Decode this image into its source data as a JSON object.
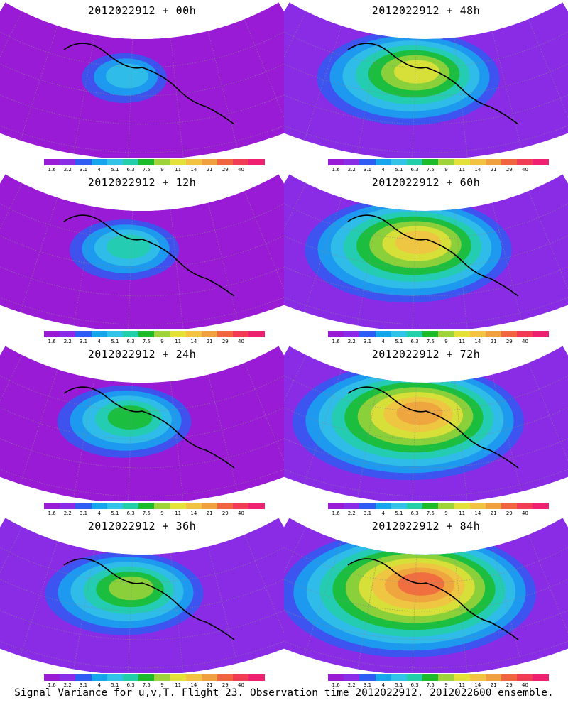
{
  "figure": {
    "caption": "Signal Variance for u,v,T. Flight 23. Observation time 2012022912. 2012022600 ensemble."
  },
  "colorbar": {
    "labels": [
      "1.6",
      "2.2",
      "3.1",
      "4",
      "5.1",
      "6.3",
      "7.5",
      "9",
      "11",
      "14",
      "21",
      "29",
      "40"
    ],
    "colors": [
      "#9a1bd6",
      "#8a2ce6",
      "#2f5cf2",
      "#17a6ee",
      "#33c2e8",
      "#22cfa8",
      "#1bbb2a",
      "#9ed43a",
      "#e4e23a",
      "#f2c243",
      "#f0a03f",
      "#f0643f",
      "#f03c55",
      "#f02070"
    ]
  },
  "panels": [
    {
      "title": "2012022912 + 00h",
      "lead_hours": 0
    },
    {
      "title": "2012022912 + 48h",
      "lead_hours": 48
    },
    {
      "title": "2012022912 + 12h",
      "lead_hours": 12
    },
    {
      "title": "2012022912 + 60h",
      "lead_hours": 60
    },
    {
      "title": "2012022912 + 24h",
      "lead_hours": 24
    },
    {
      "title": "2012022912 + 72h",
      "lead_hours": 72
    },
    {
      "title": "2012022912 + 36h",
      "lead_hours": 36
    },
    {
      "title": "2012022912 + 84h",
      "lead_hours": 84
    }
  ]
}
